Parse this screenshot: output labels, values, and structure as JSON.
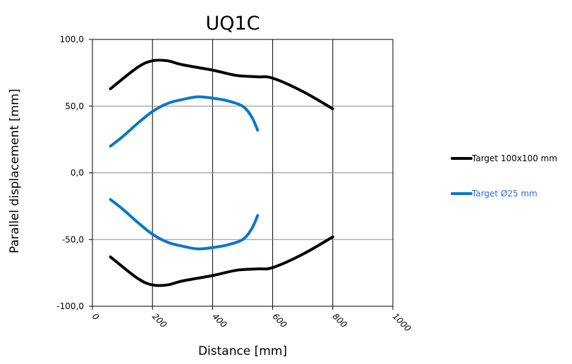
{
  "chart_data": {
    "type": "line",
    "title": "UQ1C",
    "xlabel": "Distance  [mm]",
    "ylabel": "Parallel displacement [mm]",
    "xlim": [
      0,
      1000
    ],
    "ylim": [
      -100,
      100
    ],
    "x_ticks": [
      0,
      200,
      400,
      600,
      800,
      1000
    ],
    "x_tick_labels": [
      "0",
      "200",
      "400",
      "600",
      "800",
      "1000"
    ],
    "y_ticks": [
      100,
      50,
      0,
      -50,
      -100
    ],
    "y_tick_labels": [
      "100,0",
      "50,0",
      "0,0",
      "-50,0",
      "-100,0"
    ],
    "grid": {
      "vertical": true,
      "horizontal": true
    },
    "legend": {
      "position": "right"
    },
    "series": [
      {
        "name": "Target 100x100 mm",
        "color": "#000000",
        "label_color": "#000000",
        "upper": [
          [
            60,
            63
          ],
          [
            150,
            79
          ],
          [
            200,
            84
          ],
          [
            250,
            84
          ],
          [
            300,
            81
          ],
          [
            400,
            77
          ],
          [
            480,
            73
          ],
          [
            550,
            72
          ],
          [
            600,
            71
          ],
          [
            700,
            61
          ],
          [
            800,
            48
          ]
        ],
        "lower": [
          [
            60,
            -63
          ],
          [
            150,
            -79
          ],
          [
            200,
            -84
          ],
          [
            250,
            -84
          ],
          [
            300,
            -81
          ],
          [
            400,
            -77
          ],
          [
            480,
            -73
          ],
          [
            550,
            -72
          ],
          [
            600,
            -71
          ],
          [
            700,
            -61
          ],
          [
            800,
            -48
          ]
        ]
      },
      {
        "name": "Target Ø25 mm",
        "color": "#0a77c7",
        "label_color": "#2f6fd6",
        "upper": [
          [
            60,
            20
          ],
          [
            100,
            27
          ],
          [
            150,
            37
          ],
          [
            200,
            46
          ],
          [
            250,
            52
          ],
          [
            300,
            55
          ],
          [
            350,
            57
          ],
          [
            400,
            56
          ],
          [
            450,
            54
          ],
          [
            500,
            50
          ],
          [
            530,
            42
          ],
          [
            550,
            32
          ]
        ],
        "lower": [
          [
            60,
            -20
          ],
          [
            100,
            -27
          ],
          [
            150,
            -37
          ],
          [
            200,
            -46
          ],
          [
            250,
            -52
          ],
          [
            300,
            -55
          ],
          [
            350,
            -57
          ],
          [
            400,
            -56
          ],
          [
            450,
            -54
          ],
          [
            500,
            -50
          ],
          [
            530,
            -42
          ],
          [
            550,
            -32
          ]
        ]
      }
    ]
  }
}
